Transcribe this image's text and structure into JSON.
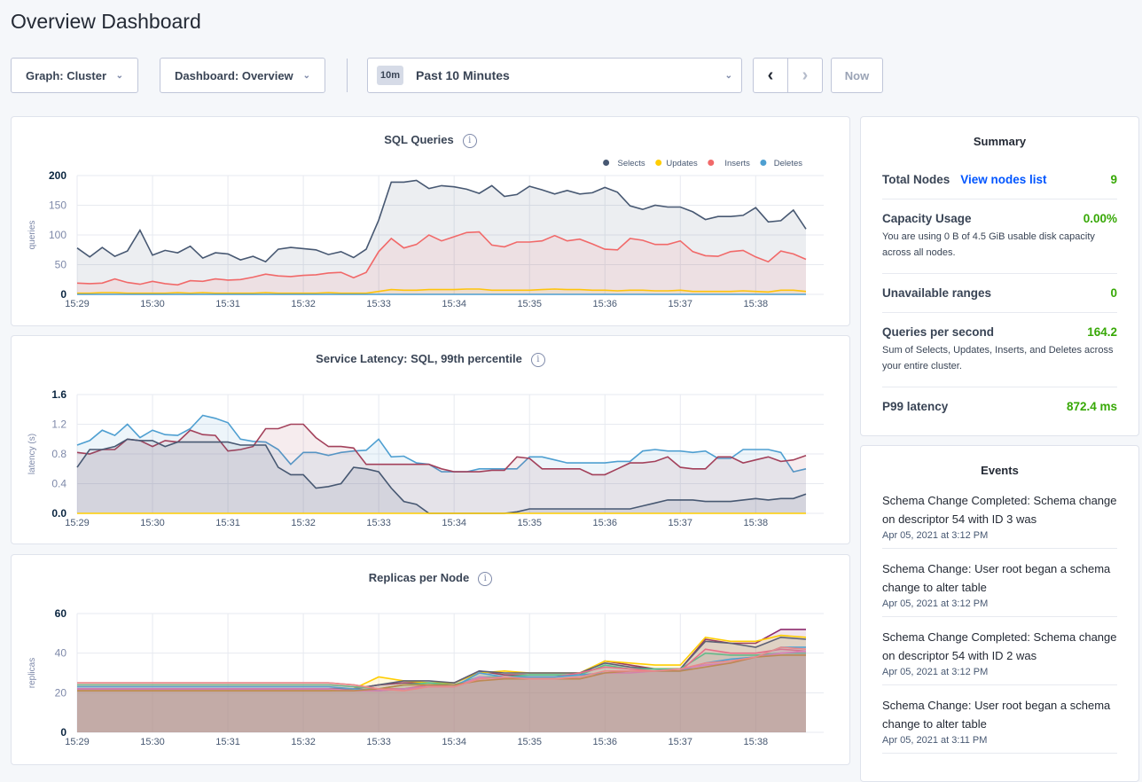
{
  "page_title": "Overview Dashboard",
  "toolbar": {
    "graph": "Graph: Cluster",
    "dashboard": "Dashboard: Overview",
    "time_badge": "10m",
    "time_range": "Past 10 Minutes",
    "prev_icon": "chevron-left-icon",
    "next_icon": "chevron-right-icon",
    "now": "Now"
  },
  "summary": {
    "title": "Summary",
    "total_nodes": {
      "label": "Total Nodes",
      "link": "View nodes list",
      "value": "9"
    },
    "capacity": {
      "label": "Capacity Usage",
      "value": "0.00%",
      "desc": "You are using 0 B of 4.5 GiB usable disk capacity across all nodes."
    },
    "unavailable": {
      "label": "Unavailable ranges",
      "value": "0"
    },
    "qps": {
      "label": "Queries per second",
      "value": "164.2",
      "desc": "Sum of Selects, Updates, Inserts, and Deletes across your entire cluster."
    },
    "p99": {
      "label": "P99 latency",
      "value": "872.4 ms"
    }
  },
  "events": {
    "title": "Events",
    "items": [
      {
        "text": "Schema Change Completed: Schema change on descriptor 54 with ID 3 was",
        "date": "Apr 05, 2021 at 3:12 PM"
      },
      {
        "text": "Schema Change: User root began a schema change to alter table",
        "date": "Apr 05, 2021 at 3:12 PM"
      },
      {
        "text": "Schema Change Completed: Schema change on descriptor 54 with ID 2 was",
        "date": "Apr 05, 2021 at 3:12 PM"
      },
      {
        "text": "Schema Change: User root began a schema change to alter table",
        "date": "Apr 05, 2021 at 3:11 PM"
      }
    ]
  },
  "chart_data": [
    {
      "type": "area",
      "title": "SQL Queries",
      "ylabel": "queries",
      "ylim": [
        0,
        200
      ],
      "yticks": [
        "0",
        "50",
        "100",
        "150",
        "200"
      ],
      "xticks": [
        "15:29",
        "15:30",
        "15:31",
        "15:32",
        "15:33",
        "15:34",
        "15:35",
        "15:36",
        "15:37",
        "15:38"
      ],
      "time_range": [
        "15:29:00",
        "15:38:40"
      ],
      "legend": "top-right",
      "grid": true,
      "series": [
        {
          "name": "Selects",
          "color": "#475872",
          "values": [
            78,
            63,
            79,
            64,
            73,
            108,
            66,
            74,
            70,
            81,
            61,
            70,
            68,
            58,
            64,
            55,
            76,
            79,
            77,
            75,
            67,
            72,
            62,
            76,
            125,
            189,
            189,
            192,
            178,
            183,
            181,
            177,
            170,
            183,
            165,
            168,
            182,
            176,
            169,
            175,
            169,
            171,
            180,
            172,
            149,
            143,
            150,
            147,
            147,
            139,
            126,
            131,
            131,
            133,
            146,
            122,
            124,
            142,
            110
          ]
        },
        {
          "name": "Updates",
          "color": "#ffcd02",
          "values": [
            2,
            2,
            3,
            3,
            2,
            2,
            2,
            2,
            3,
            2,
            3,
            2,
            2,
            2,
            2,
            3,
            2,
            2,
            2,
            2,
            3,
            2,
            2,
            2,
            5,
            8,
            7,
            7,
            8,
            8,
            8,
            9,
            9,
            7,
            7,
            7,
            7,
            8,
            9,
            8,
            8,
            7,
            7,
            6,
            7,
            7,
            6,
            6,
            7,
            5,
            5,
            5,
            5,
            6,
            5,
            4,
            7,
            7,
            5
          ]
        },
        {
          "name": "Inserts",
          "color": "#f16969",
          "values": [
            19,
            18,
            19,
            26,
            20,
            17,
            22,
            18,
            16,
            23,
            22,
            26,
            24,
            25,
            29,
            34,
            31,
            30,
            32,
            33,
            36,
            37,
            28,
            37,
            72,
            94,
            78,
            84,
            100,
            90,
            97,
            104,
            105,
            83,
            80,
            88,
            88,
            90,
            99,
            90,
            93,
            85,
            76,
            75,
            94,
            91,
            84,
            84,
            90,
            72,
            65,
            64,
            72,
            74,
            63,
            55,
            73,
            68,
            59
          ]
        },
        {
          "name": "Deletes",
          "color": "#4e9fd1",
          "values": [
            0,
            0,
            0,
            0,
            0,
            0,
            0,
            0,
            0,
            0,
            0,
            0,
            0,
            0,
            0,
            0,
            0,
            0,
            0,
            0,
            0,
            0,
            0,
            0,
            0,
            0,
            0,
            0,
            0,
            0,
            0,
            0,
            0,
            0,
            0,
            0,
            0,
            0,
            0,
            0,
            0,
            0,
            0,
            0,
            0,
            0,
            0,
            0,
            0,
            0,
            0,
            0,
            0,
            0,
            0,
            0,
            0,
            0,
            0
          ]
        }
      ]
    },
    {
      "type": "area",
      "title": "Service Latency: SQL, 99th percentile",
      "ylabel": "latency (s)",
      "ylim": [
        0,
        1.6
      ],
      "yticks": [
        "0.0",
        "0.4",
        "0.8",
        "1.2",
        "1.6"
      ],
      "xticks": [
        "15:29",
        "15:30",
        "15:31",
        "15:32",
        "15:33",
        "15:34",
        "15:35",
        "15:36",
        "15:37",
        "15:38"
      ],
      "time_range": [
        "15:29:00",
        "15:38:40"
      ],
      "grid": true,
      "series": [
        {
          "color": "#4e9fd1",
          "values": [
            0.92,
            0.98,
            1.12,
            1.05,
            1.2,
            1.02,
            1.12,
            1.06,
            1.05,
            1.14,
            1.32,
            1.28,
            1.22,
            1.0,
            0.97,
            0.96,
            0.86,
            0.66,
            0.82,
            0.82,
            0.78,
            0.82,
            0.84,
            0.85,
            1.0,
            0.76,
            0.77,
            0.68,
            0.66,
            0.56,
            0.56,
            0.56,
            0.6,
            0.6,
            0.6,
            0.6,
            0.76,
            0.76,
            0.72,
            0.68,
            0.68,
            0.68,
            0.68,
            0.7,
            0.7,
            0.84,
            0.86,
            0.84,
            0.84,
            0.82,
            0.84,
            0.74,
            0.74,
            0.86,
            0.86,
            0.86,
            0.82,
            0.56,
            0.6
          ]
        },
        {
          "color": "#a3415b",
          "values": [
            0.82,
            0.8,
            0.86,
            0.86,
            1.0,
            0.98,
            0.9,
            0.98,
            0.96,
            1.12,
            1.06,
            1.05,
            0.84,
            0.86,
            0.9,
            1.14,
            1.14,
            1.2,
            1.2,
            1.02,
            0.9,
            0.9,
            0.88,
            0.66,
            0.66,
            0.66,
            0.66,
            0.66,
            0.66,
            0.6,
            0.56,
            0.56,
            0.56,
            0.58,
            0.58,
            0.76,
            0.74,
            0.6,
            0.6,
            0.6,
            0.6,
            0.52,
            0.52,
            0.6,
            0.68,
            0.68,
            0.7,
            0.76,
            0.62,
            0.6,
            0.6,
            0.76,
            0.76,
            0.68,
            0.72,
            0.76,
            0.7,
            0.72,
            0.78
          ]
        },
        {
          "color": "#475872",
          "values": [
            0.62,
            0.86,
            0.86,
            0.9,
            1.0,
            0.98,
            0.98,
            0.9,
            0.96,
            0.96,
            0.96,
            0.96,
            0.96,
            0.92,
            0.92,
            0.92,
            0.62,
            0.52,
            0.52,
            0.34,
            0.36,
            0.4,
            0.62,
            0.6,
            0.56,
            0.34,
            0.16,
            0.12,
            0,
            0,
            0,
            0,
            0,
            0,
            0,
            0.02,
            0.06,
            0.06,
            0.06,
            0.06,
            0.06,
            0.06,
            0.06,
            0.06,
            0.06,
            0.1,
            0.14,
            0.18,
            0.18,
            0.18,
            0.16,
            0.16,
            0.16,
            0.18,
            0.2,
            0.18,
            0.2,
            0.2,
            0.26
          ]
        },
        {
          "color": "#ffcd02",
          "values": [
            0,
            0,
            0,
            0,
            0,
            0,
            0,
            0,
            0,
            0,
            0,
            0,
            0,
            0,
            0,
            0,
            0,
            0,
            0,
            0,
            0,
            0,
            0,
            0,
            0,
            0,
            0,
            0,
            0,
            0,
            0,
            0,
            0,
            0,
            0,
            0,
            0,
            0,
            0,
            0,
            0,
            0,
            0,
            0,
            0,
            0,
            0,
            0,
            0,
            0,
            0,
            0,
            0,
            0,
            0,
            0,
            0,
            0,
            0
          ]
        }
      ]
    },
    {
      "type": "area",
      "title": "Replicas per Node",
      "ylabel": "replicas",
      "ylim": [
        0,
        60
      ],
      "yticks": [
        "0",
        "20",
        "40",
        "60"
      ],
      "xticks": [
        "15:29",
        "15:30",
        "15:31",
        "15:32",
        "15:33",
        "15:34",
        "15:35",
        "15:36",
        "15:37",
        "15:38"
      ],
      "time_range": [
        "15:29:00",
        "15:38:40"
      ],
      "grid": true,
      "series": [
        {
          "color": "#8e2d6e",
          "values": [
            22,
            22,
            22,
            22,
            22,
            22,
            22,
            22,
            22,
            22,
            22,
            22,
            24,
            25,
            25,
            25,
            31,
            29,
            29,
            29,
            29,
            36,
            34,
            32,
            32,
            47,
            45,
            45,
            52,
            52
          ]
        },
        {
          "color": "#ffcd02",
          "values": [
            21,
            21,
            21,
            21,
            21,
            21,
            21,
            21,
            21,
            21,
            21,
            22,
            28,
            26,
            25,
            25,
            30,
            31,
            30,
            30,
            30,
            36,
            35,
            34,
            34,
            48,
            46,
            46,
            49,
            48
          ]
        },
        {
          "color": "#5d6175",
          "values": [
            22,
            22,
            22,
            22,
            22,
            22,
            22,
            22,
            22,
            22,
            22,
            22,
            24,
            26,
            26,
            25,
            31,
            30,
            30,
            30,
            30,
            35,
            33,
            32,
            32,
            46,
            45,
            43,
            48,
            47
          ]
        },
        {
          "color": "#54c48a",
          "values": [
            24,
            24,
            24,
            24,
            24,
            24,
            24,
            24,
            24,
            24,
            24,
            23,
            22,
            24,
            25,
            24,
            28,
            28,
            29,
            29,
            29,
            34,
            32,
            32,
            32,
            40,
            39,
            39,
            40,
            40
          ]
        },
        {
          "color": "#e76f88",
          "values": [
            25,
            25,
            25,
            25,
            25,
            25,
            25,
            25,
            25,
            25,
            25,
            24,
            22,
            22,
            24,
            23,
            27,
            28,
            28,
            28,
            30,
            33,
            32,
            31,
            31,
            42,
            40,
            40,
            42,
            41
          ]
        },
        {
          "color": "#4e9fd1",
          "values": [
            23,
            23,
            23,
            23,
            23,
            23,
            23,
            23,
            23,
            23,
            23,
            22,
            21,
            22,
            23,
            23,
            30,
            28,
            28,
            28,
            29,
            30,
            31,
            31,
            31,
            35,
            37,
            38,
            43,
            43
          ]
        },
        {
          "color": "#d77fbf",
          "values": [
            22,
            22,
            22,
            22,
            22,
            22,
            22,
            22,
            22,
            22,
            22,
            21,
            21,
            22,
            23,
            23,
            28,
            27,
            27,
            27,
            27,
            30,
            30,
            31,
            32,
            34,
            35,
            38,
            40,
            41
          ]
        },
        {
          "color": "#b8894a",
          "values": [
            21,
            21,
            21,
            21,
            21,
            21,
            21,
            21,
            21,
            21,
            21,
            21,
            22,
            24,
            24,
            24,
            26,
            27,
            27,
            27,
            27,
            30,
            31,
            31,
            31,
            33,
            35,
            38,
            39,
            39
          ]
        },
        {
          "color": "#e98a8a",
          "values": [
            25,
            25,
            25,
            25,
            25,
            25,
            25,
            25,
            25,
            25,
            25,
            24,
            22,
            21,
            23,
            23,
            27,
            28,
            27,
            27,
            28,
            31,
            31,
            31,
            32,
            35,
            36,
            38,
            43,
            42
          ]
        }
      ]
    }
  ]
}
